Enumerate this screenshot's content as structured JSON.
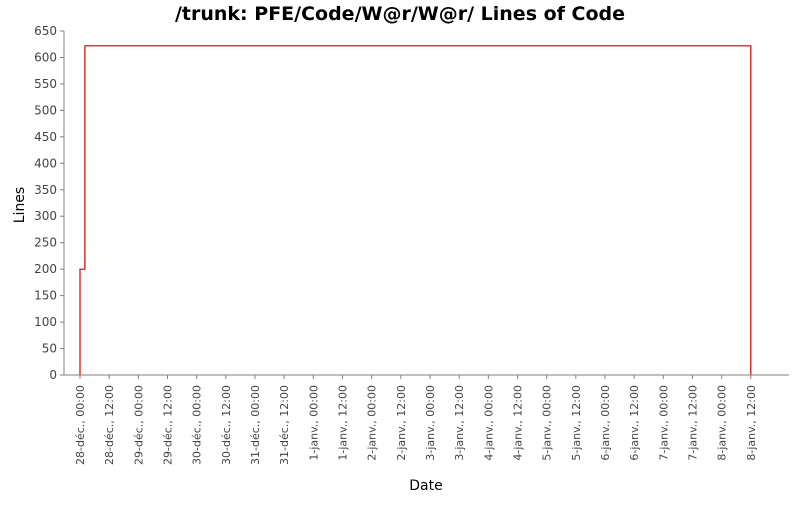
{
  "chart_data": {
    "type": "line",
    "title": "/trunk: PFE/Code/W@r/W@r/ Lines of Code",
    "xlabel": "Date",
    "ylabel": "Lines",
    "ylim": [
      0,
      650
    ],
    "yticks": [
      0,
      50,
      100,
      150,
      200,
      250,
      300,
      350,
      400,
      450,
      500,
      550,
      600,
      650
    ],
    "xlim": [
      "2005-12-28T00:00",
      "2006-01-09T00:00"
    ],
    "xticks": [
      {
        "t": "2005-12-28T00:00",
        "label": "28-déc., 00:00"
      },
      {
        "t": "2005-12-28T12:00",
        "label": "28-déc., 12:00"
      },
      {
        "t": "2005-12-29T00:00",
        "label": "29-déc., 00:00"
      },
      {
        "t": "2005-12-29T12:00",
        "label": "29-déc., 12:00"
      },
      {
        "t": "2005-12-30T00:00",
        "label": "30-déc., 00:00"
      },
      {
        "t": "2005-12-30T12:00",
        "label": "30-déc., 12:00"
      },
      {
        "t": "2005-12-31T00:00",
        "label": "31-déc., 00:00"
      },
      {
        "t": "2005-12-31T12:00",
        "label": "31-déc., 12:00"
      },
      {
        "t": "2006-01-01T00:00",
        "label": "1-janv., 00:00"
      },
      {
        "t": "2006-01-01T12:00",
        "label": "1-janv., 12:00"
      },
      {
        "t": "2006-01-02T00:00",
        "label": "2-janv., 00:00"
      },
      {
        "t": "2006-01-02T12:00",
        "label": "2-janv., 12:00"
      },
      {
        "t": "2006-01-03T00:00",
        "label": "3-janv., 00:00"
      },
      {
        "t": "2006-01-03T12:00",
        "label": "3-janv., 12:00"
      },
      {
        "t": "2006-01-04T00:00",
        "label": "4-janv., 00:00"
      },
      {
        "t": "2006-01-04T12:00",
        "label": "4-janv., 12:00"
      },
      {
        "t": "2006-01-05T00:00",
        "label": "5-janv., 00:00"
      },
      {
        "t": "2006-01-05T12:00",
        "label": "5-janv., 12:00"
      },
      {
        "t": "2006-01-06T00:00",
        "label": "6-janv., 00:00"
      },
      {
        "t": "2006-01-06T12:00",
        "label": "6-janv., 12:00"
      },
      {
        "t": "2006-01-07T00:00",
        "label": "7-janv., 00:00"
      },
      {
        "t": "2006-01-07T12:00",
        "label": "7-janv., 12:00"
      },
      {
        "t": "2006-01-08T00:00",
        "label": "8-janv., 00:00"
      },
      {
        "t": "2006-01-08T12:00",
        "label": "8-janv., 12:00"
      }
    ],
    "series": [
      {
        "color": "#cc0000",
        "step": true,
        "points": [
          {
            "x": "2005-12-28T00:00",
            "y": 0
          },
          {
            "x": "2005-12-28T00:00",
            "y": 200
          },
          {
            "x": "2005-12-28T02:00",
            "y": 200
          },
          {
            "x": "2005-12-28T02:00",
            "y": 622
          },
          {
            "x": "2006-01-08T12:00",
            "y": 622
          },
          {
            "x": "2006-01-08T12:00",
            "y": 0
          }
        ]
      }
    ],
    "grid": false,
    "legend": "none"
  }
}
